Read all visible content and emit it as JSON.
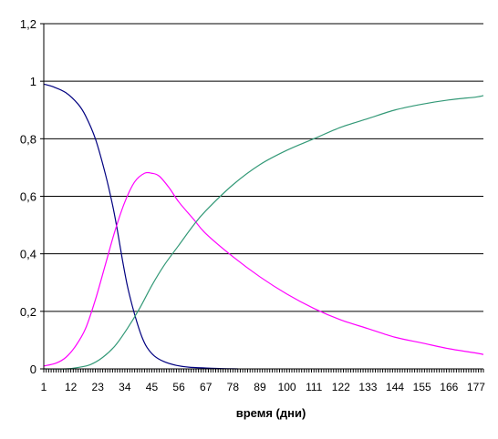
{
  "chart_data": {
    "type": "line",
    "title": "",
    "xlabel": "время (дни)",
    "ylabel": "",
    "xlim": [
      1,
      180
    ],
    "ylim": [
      0,
      1.2
    ],
    "grid": "horizontal",
    "legend": "none",
    "y_ticks": [
      "0",
      "0,2",
      "0,4",
      "0,6",
      "0,8",
      "1",
      "1,2"
    ],
    "x_tick_labels": [
      "1",
      "12",
      "23",
      "34",
      "45",
      "56",
      "67",
      "78",
      "89",
      "100",
      "111",
      "122",
      "133",
      "144",
      "155",
      "166",
      "177"
    ],
    "series": [
      {
        "color": "#000080",
        "points": [
          [
            1,
            0.99
          ],
          [
            5,
            0.98
          ],
          [
            10,
            0.96
          ],
          [
            15,
            0.92
          ],
          [
            18,
            0.88
          ],
          [
            22,
            0.8
          ],
          [
            26,
            0.68
          ],
          [
            29,
            0.57
          ],
          [
            31,
            0.48
          ],
          [
            33,
            0.38
          ],
          [
            35,
            0.29
          ],
          [
            37,
            0.22
          ],
          [
            39,
            0.16
          ],
          [
            41,
            0.11
          ],
          [
            43,
            0.075
          ],
          [
            46,
            0.045
          ],
          [
            50,
            0.025
          ],
          [
            55,
            0.012
          ],
          [
            60,
            0.006
          ],
          [
            67,
            0.003
          ],
          [
            74,
            0.001
          ],
          [
            80,
            0.0
          ]
        ]
      },
      {
        "color": "#ff00ff",
        "points": [
          [
            1,
            0.01
          ],
          [
            6,
            0.02
          ],
          [
            10,
            0.04
          ],
          [
            14,
            0.08
          ],
          [
            18,
            0.14
          ],
          [
            22,
            0.24
          ],
          [
            26,
            0.36
          ],
          [
            30,
            0.48
          ],
          [
            34,
            0.58
          ],
          [
            38,
            0.65
          ],
          [
            42,
            0.68
          ],
          [
            45,
            0.68
          ],
          [
            48,
            0.67
          ],
          [
            52,
            0.63
          ],
          [
            56,
            0.58
          ],
          [
            62,
            0.52
          ],
          [
            67,
            0.47
          ],
          [
            78,
            0.39
          ],
          [
            89,
            0.32
          ],
          [
            100,
            0.26
          ],
          [
            111,
            0.21
          ],
          [
            122,
            0.17
          ],
          [
            133,
            0.14
          ],
          [
            144,
            0.11
          ],
          [
            155,
            0.09
          ],
          [
            166,
            0.07
          ],
          [
            177,
            0.055
          ],
          [
            180,
            0.05
          ]
        ]
      },
      {
        "color": "#339977",
        "points": [
          [
            1,
            0.0
          ],
          [
            10,
            0.0
          ],
          [
            15,
            0.005
          ],
          [
            20,
            0.015
          ],
          [
            25,
            0.04
          ],
          [
            30,
            0.08
          ],
          [
            35,
            0.14
          ],
          [
            40,
            0.21
          ],
          [
            45,
            0.29
          ],
          [
            50,
            0.36
          ],
          [
            56,
            0.43
          ],
          [
            62,
            0.5
          ],
          [
            67,
            0.55
          ],
          [
            78,
            0.64
          ],
          [
            89,
            0.71
          ],
          [
            100,
            0.76
          ],
          [
            111,
            0.8
          ],
          [
            122,
            0.84
          ],
          [
            133,
            0.87
          ],
          [
            144,
            0.9
          ],
          [
            155,
            0.92
          ],
          [
            166,
            0.935
          ],
          [
            177,
            0.945
          ],
          [
            180,
            0.95
          ]
        ]
      }
    ]
  }
}
